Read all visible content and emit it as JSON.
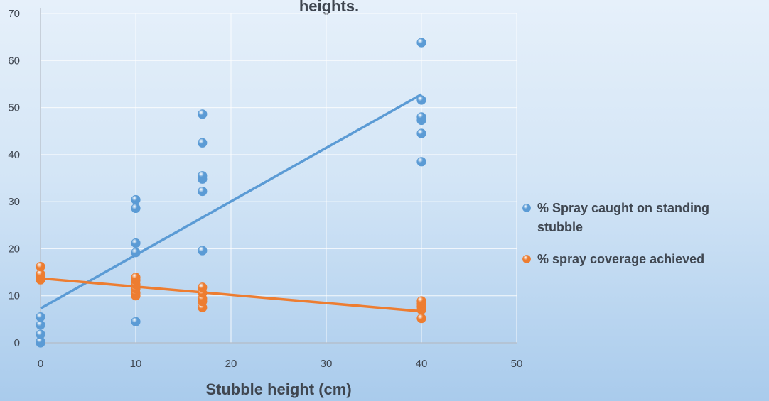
{
  "chart_data": {
    "type": "scatter",
    "title": "heights.",
    "xlabel": "Stubble height (cm)",
    "ylabel": "",
    "xlim": [
      0,
      50
    ],
    "ylim": [
      0,
      70
    ],
    "x_ticks": [
      "0",
      "10",
      "20",
      "30",
      "40",
      "50"
    ],
    "y_ticks": [
      "0",
      "10",
      "20",
      "30",
      "40",
      "50",
      "60",
      "70"
    ],
    "grid": true,
    "legend_position": "right",
    "series": [
      {
        "name": "% Spray caught on standing stubble",
        "color": "#5b9bd5",
        "points": [
          {
            "x": 0,
            "y": 0
          },
          {
            "x": 0,
            "y": 0.3
          },
          {
            "x": 0,
            "y": 1.8
          },
          {
            "x": 0,
            "y": 3.8
          },
          {
            "x": 0,
            "y": 5.5
          },
          {
            "x": 10,
            "y": 4.5
          },
          {
            "x": 10,
            "y": 19.2
          },
          {
            "x": 10,
            "y": 21.2
          },
          {
            "x": 10,
            "y": 28.6
          },
          {
            "x": 10,
            "y": 30.4
          },
          {
            "x": 17,
            "y": 19.6
          },
          {
            "x": 17,
            "y": 32.2
          },
          {
            "x": 17,
            "y": 34.8
          },
          {
            "x": 17,
            "y": 35.5
          },
          {
            "x": 17,
            "y": 42.5
          },
          {
            "x": 17,
            "y": 48.6
          },
          {
            "x": 40,
            "y": 38.5
          },
          {
            "x": 40,
            "y": 44.5
          },
          {
            "x": 40,
            "y": 47.3
          },
          {
            "x": 40,
            "y": 48.0
          },
          {
            "x": 40,
            "y": 51.6
          },
          {
            "x": 40,
            "y": 63.8
          }
        ],
        "trendline": {
          "x": [
            0,
            40
          ],
          "y": [
            7.3,
            52.8
          ]
        }
      },
      {
        "name": "% spray coverage achieved",
        "color": "#ed7d31",
        "points": [
          {
            "x": 0,
            "y": 13.4
          },
          {
            "x": 0,
            "y": 14.0
          },
          {
            "x": 0,
            "y": 14.6
          },
          {
            "x": 0,
            "y": 16.2
          },
          {
            "x": 10,
            "y": 10.0
          },
          {
            "x": 10,
            "y": 10.6
          },
          {
            "x": 10,
            "y": 11.5
          },
          {
            "x": 10,
            "y": 12.4
          },
          {
            "x": 10,
            "y": 13.3
          },
          {
            "x": 10,
            "y": 13.9
          },
          {
            "x": 17,
            "y": 7.5
          },
          {
            "x": 17,
            "y": 8.8
          },
          {
            "x": 17,
            "y": 9.4
          },
          {
            "x": 17,
            "y": 10.6
          },
          {
            "x": 17,
            "y": 11.8
          },
          {
            "x": 40,
            "y": 5.2
          },
          {
            "x": 40,
            "y": 7.0
          },
          {
            "x": 40,
            "y": 7.7
          },
          {
            "x": 40,
            "y": 8.3
          },
          {
            "x": 40,
            "y": 8.9
          }
        ],
        "trendline": {
          "x": [
            0,
            40
          ],
          "y": [
            13.7,
            6.7
          ]
        }
      }
    ]
  }
}
